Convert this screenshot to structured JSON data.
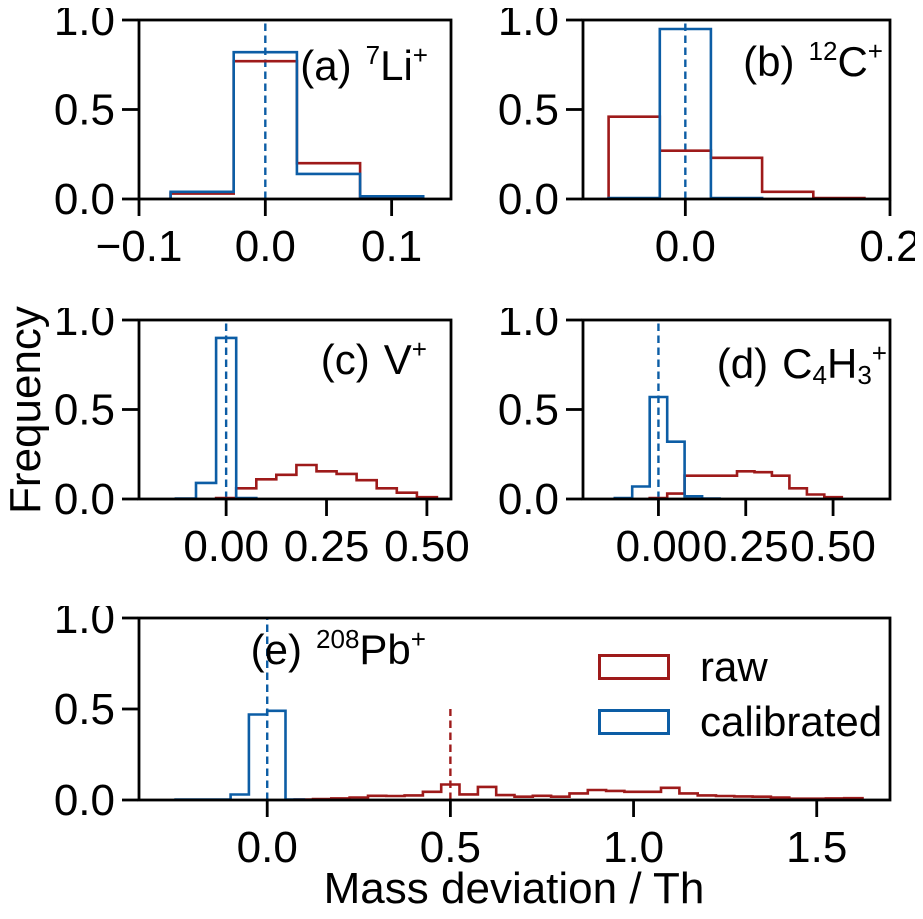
{
  "figure": {
    "xlabel": "Mass deviation / Th",
    "ylabel": "Frequency",
    "colors": {
      "raw": "#9e1a1a",
      "calibrated": "#0c5da5",
      "axis": "#000000",
      "background": "#ffffff"
    },
    "legend": {
      "items": [
        {
          "series": "raw",
          "label": "raw"
        },
        {
          "series": "calibrated",
          "label": "calibrated"
        }
      ]
    }
  },
  "chart_data": [
    {
      "id": "a",
      "type": "histogram-step",
      "text": "(a) ⁷Li⁺",
      "annotation": {
        "prefix": "(a)",
        "ion": [
          {
            "t": "7",
            "s": "sup"
          },
          {
            "t": "Li",
            "s": "n"
          },
          {
            "t": "+",
            "s": "sup"
          }
        ]
      },
      "xlim": [
        -0.1,
        0.147
      ],
      "ylim": [
        0,
        1
      ],
      "xticks": [
        {
          "v": -0.1,
          "l": "−0.1"
        },
        {
          "v": 0.0,
          "l": "0.0"
        },
        {
          "v": 0.1,
          "l": "0.1"
        }
      ],
      "yticks": [
        {
          "v": 0.0,
          "l": "0.0"
        },
        {
          "v": 0.5,
          "l": "0.5"
        },
        {
          "v": 1.0,
          "l": "1.0"
        }
      ],
      "vlines": [
        {
          "x": 0,
          "series": "calibrated",
          "y0": 0,
          "y1": 1
        }
      ],
      "series": [
        {
          "name": "raw",
          "bin_start": -0.075,
          "bin_width": 0.05,
          "heights": [
            0.03,
            0.77,
            0.2,
            0.005
          ]
        },
        {
          "name": "calibrated",
          "bin_start": -0.075,
          "bin_width": 0.05,
          "heights": [
            0.04,
            0.82,
            0.14,
            0.015
          ]
        }
      ]
    },
    {
      "id": "b",
      "type": "histogram-step",
      "text": "(b) ¹²C⁺",
      "annotation": {
        "prefix": "(b)",
        "ion": [
          {
            "t": "12",
            "s": "sup"
          },
          {
            "t": "C",
            "s": "n"
          },
          {
            "t": "+",
            "s": "sup"
          }
        ]
      },
      "xlim": [
        -0.1,
        0.2
      ],
      "ylim": [
        0,
        1
      ],
      "xticks": [
        {
          "v": 0.0,
          "l": "0.0"
        },
        {
          "v": 0.2,
          "l": "0.2"
        }
      ],
      "yticks": [
        {
          "v": 0.0,
          "l": "0.0"
        },
        {
          "v": 0.5,
          "l": "0.5"
        },
        {
          "v": 1.0,
          "l": "1.0"
        }
      ],
      "vlines": [
        {
          "x": 0,
          "series": "calibrated",
          "y0": 0,
          "y1": 1
        }
      ],
      "series": [
        {
          "name": "raw",
          "bin_start": -0.075,
          "bin_width": 0.05,
          "heights": [
            0.46,
            0.27,
            0.23,
            0.04,
            0.005
          ]
        },
        {
          "name": "calibrated",
          "bin_start": -0.075,
          "bin_width": 0.05,
          "heights": [
            0.005,
            0.95,
            0.005
          ]
        }
      ]
    },
    {
      "id": "c",
      "type": "histogram-step",
      "text": "(c) V⁺",
      "annotation": {
        "prefix": "(c)",
        "ion": [
          {
            "t": "V",
            "s": "n"
          },
          {
            "t": "+",
            "s": "sup"
          }
        ]
      },
      "xlim": [
        -0.217,
        0.56
      ],
      "ylim": [
        0,
        1
      ],
      "xticks": [
        {
          "v": 0.0,
          "l": "0.00"
        },
        {
          "v": 0.25,
          "l": "0.25"
        },
        {
          "v": 0.5,
          "l": "0.50"
        }
      ],
      "yticks": [
        {
          "v": 0.0,
          "l": "0.0"
        },
        {
          "v": 0.5,
          "l": "0.5"
        },
        {
          "v": 1.0,
          "l": "1.0"
        }
      ],
      "vlines": [
        {
          "x": 0,
          "series": "calibrated",
          "y0": 0,
          "y1": 1
        }
      ],
      "series": [
        {
          "name": "raw",
          "bin_start": -0.025,
          "bin_width": 0.05,
          "heights": [
            0.005,
            0.06,
            0.11,
            0.135,
            0.19,
            0.155,
            0.14,
            0.105,
            0.06,
            0.035,
            0.01
          ]
        },
        {
          "name": "calibrated",
          "bin_start": -0.125,
          "bin_width": 0.05,
          "heights": [
            0.003,
            0.09,
            0.9,
            0.005
          ]
        }
      ]
    },
    {
      "id": "d",
      "type": "histogram-step",
      "text": "(d) C₄H₃⁺",
      "annotation": {
        "prefix": "(d)",
        "ion": [
          {
            "t": "C",
            "s": "n"
          },
          {
            "t": "4",
            "s": "sub"
          },
          {
            "t": "H",
            "s": "n"
          },
          {
            "t": "3",
            "s": "sub"
          },
          {
            "t": "+",
            "s": "sup"
          }
        ]
      },
      "xlim": [
        -0.216,
        0.663
      ],
      "ylim": [
        0,
        1
      ],
      "xticks": [
        {
          "v": 0.0,
          "l": "0.00"
        },
        {
          "v": 0.25,
          "l": "0.25"
        },
        {
          "v": 0.5,
          "l": "0.50"
        }
      ],
      "yticks": [
        {
          "v": 0.0,
          "l": "0.0"
        },
        {
          "v": 0.5,
          "l": "0.5"
        },
        {
          "v": 1.0,
          "l": "1.0"
        }
      ],
      "vlines": [
        {
          "x": 0,
          "series": "calibrated",
          "y0": 0,
          "y1": 1
        }
      ],
      "series": [
        {
          "name": "raw",
          "bin_start": -0.025,
          "bin_width": 0.05,
          "heights": [
            0.005,
            0.03,
            0.13,
            0.13,
            0.13,
            0.155,
            0.15,
            0.13,
            0.06,
            0.025,
            0.01
          ]
        },
        {
          "name": "calibrated",
          "bin_start": -0.125,
          "bin_width": 0.05,
          "heights": [
            0.005,
            0.07,
            0.57,
            0.32,
            0.015,
            0.003
          ]
        }
      ]
    },
    {
      "id": "e",
      "type": "histogram-step",
      "text": "(e) ²⁰⁸Pb⁺",
      "annotation": {
        "prefix": "(e)",
        "ion": [
          {
            "t": "208",
            "s": "sup"
          },
          {
            "t": "Pb",
            "s": "n"
          },
          {
            "t": "+",
            "s": "sup"
          }
        ]
      },
      "xlim": [
        -0.35,
        1.7
      ],
      "ylim": [
        0,
        1
      ],
      "xticks": [
        {
          "v": 0.0,
          "l": "0.0"
        },
        {
          "v": 0.5,
          "l": "0.5"
        },
        {
          "v": 1.0,
          "l": "1.0"
        },
        {
          "v": 1.5,
          "l": "1.5"
        }
      ],
      "yticks": [
        {
          "v": 0.0,
          "l": "0.0"
        },
        {
          "v": 0.5,
          "l": "0.5"
        },
        {
          "v": 1.0,
          "l": "1.0"
        }
      ],
      "vlines": [
        {
          "x": 0,
          "series": "calibrated",
          "y0": 0,
          "y1": 1
        },
        {
          "x": 0.5,
          "series": "raw",
          "y0": 0,
          "y1": 0.5
        }
      ],
      "series": [
        {
          "name": "raw",
          "bin_start": 0.075,
          "bin_width": 0.05,
          "heights": [
            0.003,
            0.005,
            0.009,
            0.014,
            0.023,
            0.022,
            0.025,
            0.045,
            0.085,
            0.031,
            0.072,
            0.027,
            0.018,
            0.023,
            0.018,
            0.036,
            0.055,
            0.05,
            0.045,
            0.045,
            0.067,
            0.036,
            0.025,
            0.022,
            0.02,
            0.018,
            0.013,
            0.007,
            0.007,
            0.009,
            0.01
          ]
        },
        {
          "name": "calibrated",
          "bin_start": -0.25,
          "bin_width": 0.05,
          "heights": [
            0.003,
            0.003,
            0.003,
            0.03,
            0.47,
            0.49,
            0.003
          ]
        }
      ]
    }
  ]
}
